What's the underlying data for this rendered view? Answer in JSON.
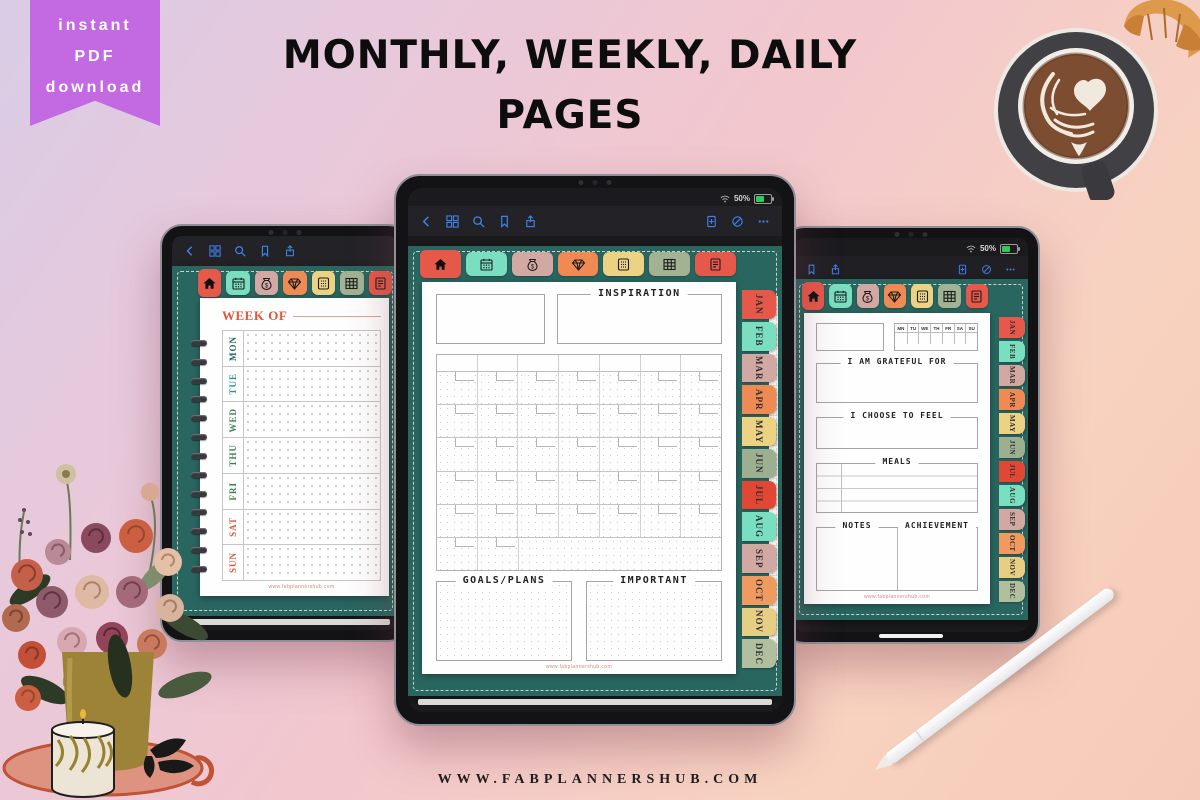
{
  "badge": {
    "line1": "instant",
    "line2": "PDF",
    "line3": "download"
  },
  "title": {
    "line1": "MONTHLY, WEEKLY, DAILY",
    "line2": "PAGES"
  },
  "footer_url": "WWW.FABPLANNERSHUB.COM",
  "page_watermark": "www.fabplannershub.com",
  "status": {
    "battery_percent": "50%"
  },
  "months": [
    "JAN",
    "FEB",
    "MAR",
    "APR",
    "MAY",
    "JUN",
    "JUL",
    "AUG",
    "SEP",
    "OCT",
    "NOV",
    "DEC"
  ],
  "month_tab_colors": [
    "#e6584a",
    "#7adec0",
    "#d2a8a3",
    "#ef8a55",
    "#ecd283",
    "#9caf90",
    "#e04734",
    "#7adec0",
    "#d2a8a3",
    "#f09a60",
    "#e6cf85",
    "#b2bf9e"
  ],
  "planner_tabs": [
    {
      "name": "home",
      "color": "#e6584a"
    },
    {
      "name": "calendar",
      "color": "#7adec0"
    },
    {
      "name": "money",
      "color": "#d2a8a3"
    },
    {
      "name": "diamond",
      "color": "#ef8a55"
    },
    {
      "name": "dotted-page",
      "color": "#ecd283"
    },
    {
      "name": "grid",
      "color": "#a2b394"
    },
    {
      "name": "document",
      "color": "#e6584a"
    }
  ],
  "weekly": {
    "title": "WEEK OF",
    "days": [
      {
        "label": "MON",
        "color": "#20655b"
      },
      {
        "label": "TUE",
        "color": "#2e9286"
      },
      {
        "label": "WED",
        "color": "#3f7f4e"
      },
      {
        "label": "THU",
        "color": "#3f7f4e"
      },
      {
        "label": "FRI",
        "color": "#3f7f4e"
      },
      {
        "label": "SAT",
        "color": "#d95b3b"
      },
      {
        "label": "SUN",
        "color": "#d95b3b"
      }
    ]
  },
  "monthly": {
    "inspiration_label": "INSPIRATION",
    "goals_label": "GOALS/PLANS",
    "important_label": "IMPORTANT"
  },
  "daily": {
    "mini_week": [
      "MN",
      "TU",
      "WE",
      "TH",
      "FR",
      "SA",
      "SU"
    ],
    "grateful_label": "I AM GRATEFUL FOR",
    "feel_label": "I CHOOSE TO FEEL",
    "meals_label": "MEALS",
    "notes_label": "NOTES",
    "achievement_label": "ACHIEVEMENT"
  },
  "icons": [
    "back-icon",
    "pages-grid-icon",
    "search-icon",
    "bookmark-icon",
    "share-icon",
    "add-page-icon",
    "readonly-icon",
    "more-icon",
    "wifi-icon",
    "battery-icon",
    "home-icon",
    "calendar-icon",
    "money-icon",
    "diamond-icon",
    "dotted-page-icon",
    "grid-icon",
    "document-icon"
  ],
  "colors": {
    "badge_bg": "#c36ae2",
    "cover_teal": "#2a6660",
    "accent_blue": "#3f82f0",
    "battery_green": "#34c759",
    "week_title_red": "#e0563a"
  }
}
